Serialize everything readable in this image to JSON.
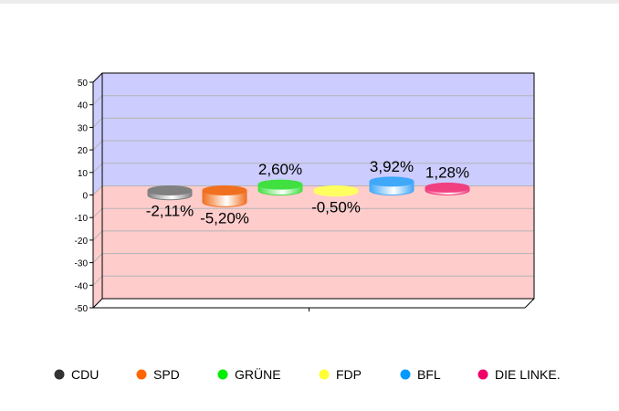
{
  "chart_data": {
    "type": "bar",
    "categories": [
      "CDU",
      "SPD",
      "GRÜNE",
      "FDP",
      "BFL",
      "DIE LINKE."
    ],
    "values": [
      -2.11,
      -5.2,
      2.6,
      -0.5,
      3.92,
      1.28
    ],
    "data_labels": [
      "-2,11%",
      "-5,20%",
      "2,60%",
      "-0,50%",
      "3,92%",
      "1,28%"
    ],
    "colors": [
      "#808080",
      "#f07020",
      "#40e040",
      "#ffff60",
      "#40a8f8",
      "#f04080"
    ],
    "legend_colors": [
      "#333333",
      "#ff6600",
      "#00ee00",
      "#ffff33",
      "#0099ff",
      "#ee0066"
    ],
    "yticks": [
      "50",
      "40",
      "30",
      "20",
      "10",
      "0",
      "-10",
      "-20",
      "-30",
      "-40",
      "-50"
    ],
    "ylim": [
      -50,
      50
    ],
    "background": {
      "positive": "#ccccff",
      "negative": "#ffcccc"
    },
    "grid": true,
    "legend_position": "bottom",
    "title": "",
    "xlabel": "",
    "ylabel": ""
  }
}
